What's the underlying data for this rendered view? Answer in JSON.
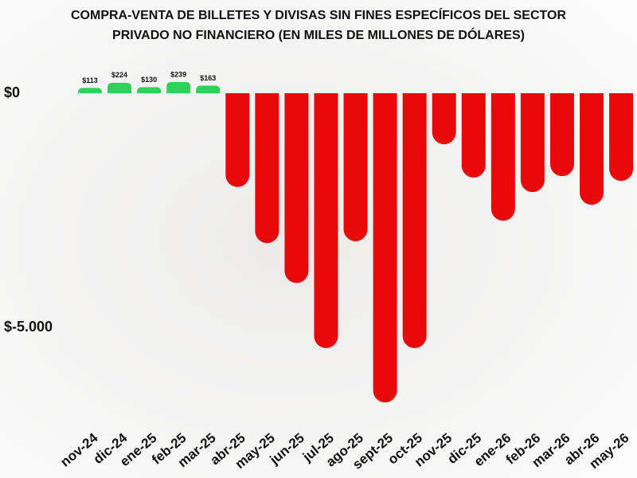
{
  "chart_data": {
    "type": "bar",
    "title": [
      "COMPRA-VENTA DE BILLETES Y DIVISAS SIN FINES ESPECÍFICOS DEL SECTOR",
      "PRIVADO NO FINANCIERO (EN MILES DE MILLONES DE DÓLARES)"
    ],
    "categories": [
      "nov-24",
      "dic-24",
      "ene-25",
      "feb-25",
      "mar-25",
      "abr-25",
      "may-25",
      "jun-25",
      "jul-25",
      "ago-25",
      "sept-25",
      "oct-25",
      "nov-25",
      "dic-25",
      "ene-26",
      "feb-26",
      "mar-26",
      "abr-26",
      "may-26"
    ],
    "values": [
      113,
      224,
      130,
      239,
      163,
      -2000,
      -3200,
      -4050,
      -5440,
      -3160,
      -6600,
      -5440,
      -1090,
      -1800,
      -2720,
      -2110,
      -1770,
      -2380,
      -1870
    ],
    "value_labels": [
      "$113",
      "$224",
      "$130",
      "$239",
      "$163",
      null,
      null,
      null,
      null,
      null,
      null,
      null,
      null,
      null,
      null,
      null,
      null,
      null,
      null
    ],
    "positive_color": "#2fd158",
    "negative_color": "#e80a0a",
    "ylim": [
      -7000,
      300
    ],
    "yticks": [
      {
        "value": 0,
        "label": "$0"
      },
      {
        "value": -5000,
        "label": "$-5.000"
      }
    ],
    "grid": false
  }
}
